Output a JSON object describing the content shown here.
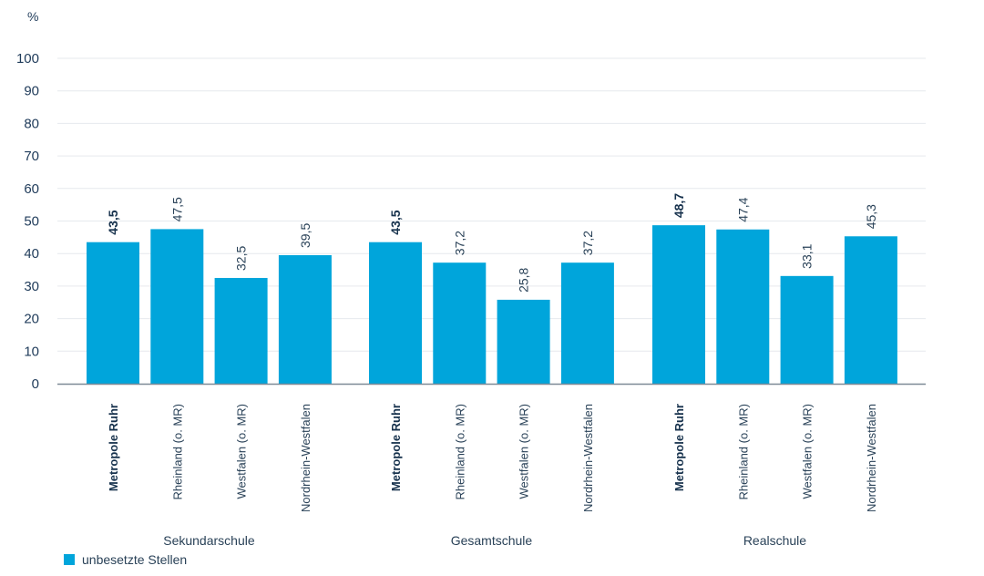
{
  "chart_data": {
    "type": "bar",
    "unit_label": "%",
    "ylim": [
      0,
      100
    ],
    "yticks": [
      0,
      10,
      20,
      30,
      40,
      50,
      60,
      70,
      80,
      90,
      100
    ],
    "grid": true,
    "bar_color": "#00a5db",
    "highlight_category": "Metropole Ruhr",
    "groups": [
      {
        "name": "Sekundarschule",
        "categories": [
          "Metropole Ruhr",
          "Rheinland (o. MR)",
          "Westfalen (o. MR)",
          "Nordrhein-Westfalen"
        ],
        "values": [
          43.5,
          47.5,
          32.5,
          39.5
        ],
        "value_labels": [
          "43,5",
          "47,5",
          "32,5",
          "39,5"
        ]
      },
      {
        "name": "Gesamtschule",
        "categories": [
          "Metropole Ruhr",
          "Rheinland (o. MR)",
          "Westfalen (o. MR)",
          "Nordrhein-Westfalen"
        ],
        "values": [
          43.5,
          37.2,
          25.8,
          37.2
        ],
        "value_labels": [
          "43,5",
          "37,2",
          "25,8",
          "37,2"
        ]
      },
      {
        "name": "Realschule",
        "categories": [
          "Metropole Ruhr",
          "Rheinland (o. MR)",
          "Westfalen (o. MR)",
          "Nordrhein-Westfalen"
        ],
        "values": [
          48.7,
          47.4,
          33.1,
          45.3
        ],
        "value_labels": [
          "48,7",
          "47,4",
          "33,1",
          "45,3"
        ]
      }
    ],
    "legend": {
      "position": "bottom-left",
      "entries": [
        {
          "label": "unbesetzte Stellen",
          "color": "#00a5db"
        }
      ]
    }
  }
}
